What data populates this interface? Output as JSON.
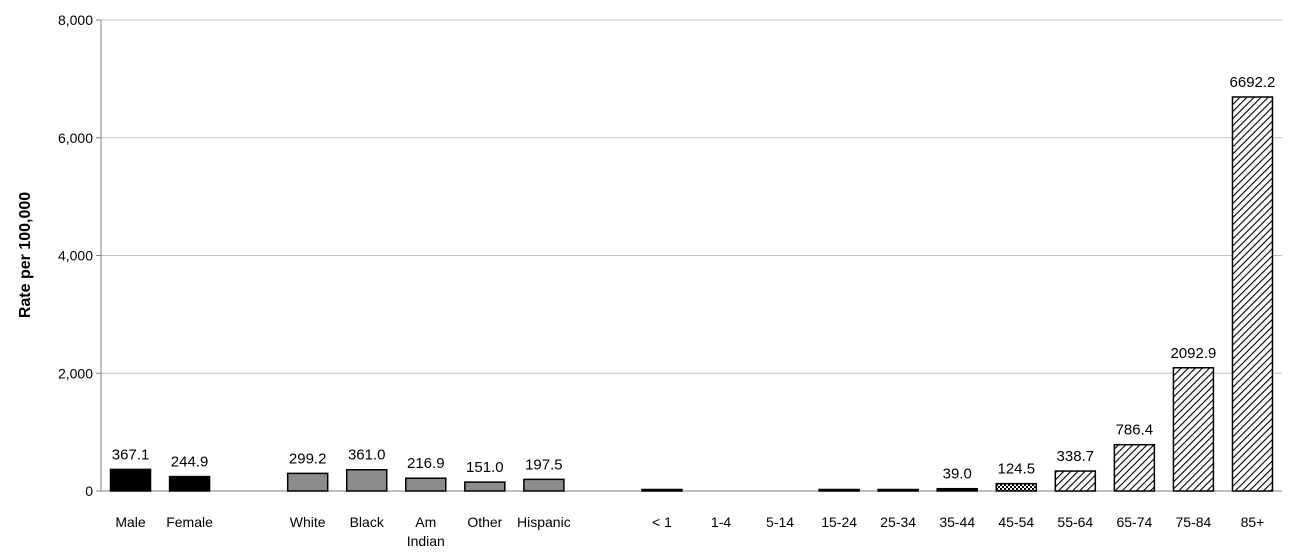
{
  "chart_data": {
    "type": "bar",
    "title": "",
    "xlabel": "",
    "ylabel": "Rate per 100,000",
    "ylim": [
      0,
      8000
    ],
    "yticks": [
      0,
      2000,
      4000,
      6000,
      8000
    ],
    "ytick_labels": [
      "0",
      "2,000",
      "4,000",
      "6,000",
      "8,000"
    ],
    "grid": true,
    "legend": "none",
    "groups": [
      {
        "style": "solid-black",
        "bars": [
          {
            "category": "Male",
            "value": 367.1,
            "label": "367.1"
          },
          {
            "category": "Female",
            "value": 244.9,
            "label": "244.9"
          }
        ]
      },
      {
        "style": "solid-gray",
        "bars": [
          {
            "category": "White",
            "value": 299.2,
            "label": "299.2"
          },
          {
            "category": "Black",
            "value": 361.0,
            "label": "361.0"
          },
          {
            "category": "Am Indian",
            "value": 216.9,
            "label": "216.9"
          },
          {
            "category": "Other",
            "value": 151.0,
            "label": "151.0"
          },
          {
            "category": "Hispanic",
            "value": 197.5,
            "label": "197.5"
          }
        ]
      },
      {
        "style": "age",
        "bars": [
          {
            "category": "< 1",
            "value": 12,
            "label": ""
          },
          {
            "category": "1-4",
            "value": 0,
            "label": ""
          },
          {
            "category": "5-14",
            "value": 0,
            "label": ""
          },
          {
            "category": "15-24",
            "value": 8,
            "label": ""
          },
          {
            "category": "25-34",
            "value": 10,
            "label": ""
          },
          {
            "category": "35-44",
            "value": 39.0,
            "label": "39.0"
          },
          {
            "category": "45-54",
            "value": 124.5,
            "label": "124.5"
          },
          {
            "category": "55-64",
            "value": 338.7,
            "label": "338.7"
          },
          {
            "category": "65-74",
            "value": 786.4,
            "label": "786.4"
          },
          {
            "category": "75-84",
            "value": 2092.9,
            "label": "2092.9"
          },
          {
            "category": "85+",
            "value": 6692.2,
            "label": "6692.2"
          }
        ]
      }
    ],
    "colors": {
      "black": "#000000",
      "gray": "#8c8c8c",
      "grid": "#c0c0c0",
      "axis": "#808080"
    }
  }
}
